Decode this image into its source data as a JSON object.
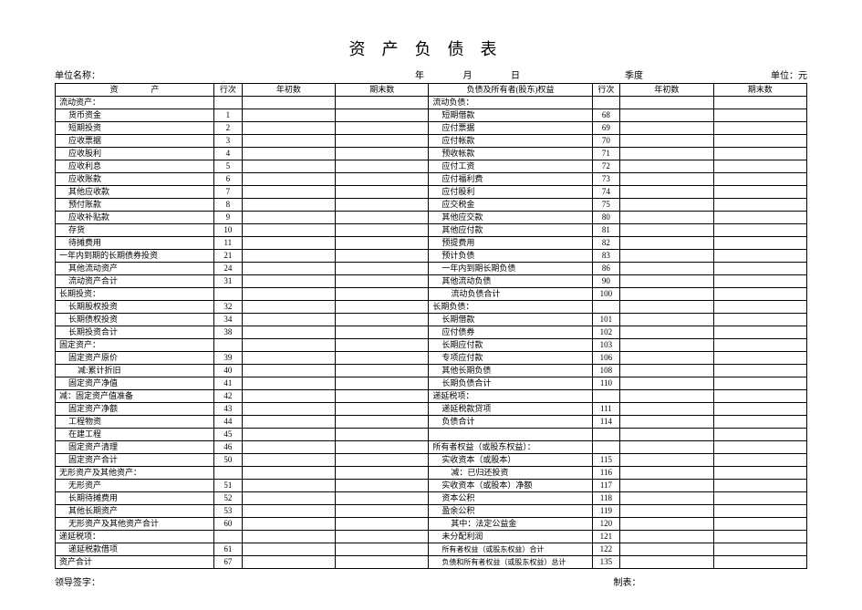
{
  "title": "资产负债表",
  "meta": {
    "unit_name_label": "单位名称：",
    "date_parts": "年  月  日",
    "season_label": "季度",
    "currency_label": "单位：元"
  },
  "headers": {
    "asset": "资　　　　产",
    "row": "行次",
    "begin": "年初数",
    "end": "期末数",
    "liab": "负债及所有者(股东)权益",
    "row2": "行次",
    "begin2": "年初数",
    "end2": "期末数"
  },
  "rows": [
    {
      "a": "流动资产：",
      "ai": 0,
      "r": "",
      "l": "流动负债：",
      "li": 0,
      "r2": ""
    },
    {
      "a": "货币资金",
      "ai": 1,
      "r": "1",
      "l": "短期借款",
      "li": 1,
      "r2": "68"
    },
    {
      "a": "短期投资",
      "ai": 1,
      "r": "2",
      "l": "应付票据",
      "li": 1,
      "r2": "69"
    },
    {
      "a": "应收票据",
      "ai": 1,
      "r": "3",
      "l": "应付帐款",
      "li": 1,
      "r2": "70"
    },
    {
      "a": "应收股利",
      "ai": 1,
      "r": "4",
      "l": "预收帐款",
      "li": 1,
      "r2": "71"
    },
    {
      "a": "应收利息",
      "ai": 1,
      "r": "5",
      "l": "应付工资",
      "li": 1,
      "r2": "72"
    },
    {
      "a": "应收账款",
      "ai": 1,
      "r": "6",
      "l": "应付福利费",
      "li": 1,
      "r2": "73"
    },
    {
      "a": "其他应收款",
      "ai": 1,
      "r": "7",
      "l": "应付股利",
      "li": 1,
      "r2": "74"
    },
    {
      "a": "预付账款",
      "ai": 1,
      "r": "8",
      "l": "应交税金",
      "li": 1,
      "r2": "75"
    },
    {
      "a": "应收补贴款",
      "ai": 1,
      "r": "9",
      "l": "其他应交款",
      "li": 1,
      "r2": "80"
    },
    {
      "a": "存货",
      "ai": 1,
      "r": "10",
      "l": "其他应付款",
      "li": 1,
      "r2": "81"
    },
    {
      "a": "待摊费用",
      "ai": 1,
      "r": "11",
      "l": "预提费用",
      "li": 1,
      "r2": "82"
    },
    {
      "a": "一年内到期的长期债券投资",
      "ai": 0,
      "r": "21",
      "l": "预计负债",
      "li": 1,
      "r2": "83"
    },
    {
      "a": "其他流动资产",
      "ai": 1,
      "r": "24",
      "l": "一年内到期长期负债",
      "li": 1,
      "r2": "86"
    },
    {
      "a": "流动资产合计",
      "ai": 1,
      "r": "31",
      "l": "其他流动负债",
      "li": 1,
      "r2": "90"
    },
    {
      "a": "长期投资：",
      "ai": 0,
      "r": "",
      "l": "流动负债合计",
      "li": 2,
      "r2": "100"
    },
    {
      "a": "长期股权投资",
      "ai": 1,
      "r": "32",
      "l": "长期负债：",
      "li": 0,
      "r2": ""
    },
    {
      "a": "长期债权投资",
      "ai": 1,
      "r": "34",
      "l": "长期借款",
      "li": 1,
      "r2": "101"
    },
    {
      "a": "长期投资合计",
      "ai": 1,
      "r": "38",
      "l": "应付债券",
      "li": 1,
      "r2": "102"
    },
    {
      "a": "固定资产：",
      "ai": 0,
      "r": "",
      "l": "长期应付款",
      "li": 1,
      "r2": "103"
    },
    {
      "a": "固定资产原价",
      "ai": 1,
      "r": "39",
      "l": "专项应付款",
      "li": 1,
      "r2": "106"
    },
    {
      "a": "减:累计折旧",
      "ai": 2,
      "r": "40",
      "l": "其他长期负债",
      "li": 1,
      "r2": "108"
    },
    {
      "a": "固定资产净值",
      "ai": 1,
      "r": "41",
      "l": "长期负债合计",
      "li": 1,
      "r2": "110"
    },
    {
      "a": "减：固定资产值准备",
      "ai": 0,
      "r": "42",
      "l": "递延税项：",
      "li": 0,
      "r2": ""
    },
    {
      "a": "固定资产净额",
      "ai": 1,
      "r": "43",
      "l": "递延税款贷项",
      "li": 1,
      "r2": "111"
    },
    {
      "a": "工程物资",
      "ai": 1,
      "r": "44",
      "l": "负债合计",
      "li": 1,
      "r2": "114"
    },
    {
      "a": "在建工程",
      "ai": 1,
      "r": "45",
      "l": "",
      "li": 0,
      "r2": ""
    },
    {
      "a": "固定资产清理",
      "ai": 1,
      "r": "46",
      "l": "所有者权益（或股东权益）：",
      "li": 0,
      "r2": ""
    },
    {
      "a": "固定资产合计",
      "ai": 1,
      "r": "50",
      "l": "实收资本（或股本）",
      "li": 1,
      "r2": "115"
    },
    {
      "a": "无形资产及其他资产：",
      "ai": 0,
      "r": "",
      "l": "减：已归还投资",
      "li": 2,
      "r2": "116"
    },
    {
      "a": "无形资产",
      "ai": 1,
      "r": "51",
      "l": "实收资本（或股本）净额",
      "li": 1,
      "r2": "117"
    },
    {
      "a": "长期待摊费用",
      "ai": 1,
      "r": "52",
      "l": "资本公积",
      "li": 1,
      "r2": "118"
    },
    {
      "a": "其他长期资产",
      "ai": 1,
      "r": "53",
      "l": "盈余公积",
      "li": 1,
      "r2": "119"
    },
    {
      "a": "无形资产及其他资产合计",
      "ai": 1,
      "r": "60",
      "l": "其中：法定公益金",
      "li": 2,
      "r2": "120"
    },
    {
      "a": "递延税项：",
      "ai": 0,
      "r": "",
      "l": "未分配利润",
      "li": 1,
      "r2": "121"
    },
    {
      "a": "递延税款借项",
      "ai": 1,
      "r": "61",
      "l": "所有者权益（或股东权益）合计",
      "li": 1,
      "r2": "122",
      "ls": true
    },
    {
      "a": "资产合计",
      "ai": 0,
      "r": "67",
      "l": "负债和所有者权益（或股东权益）总计",
      "li": 1,
      "r2": "135",
      "ls": true
    }
  ],
  "footer": {
    "left": "领导签字：",
    "right": "制表："
  }
}
